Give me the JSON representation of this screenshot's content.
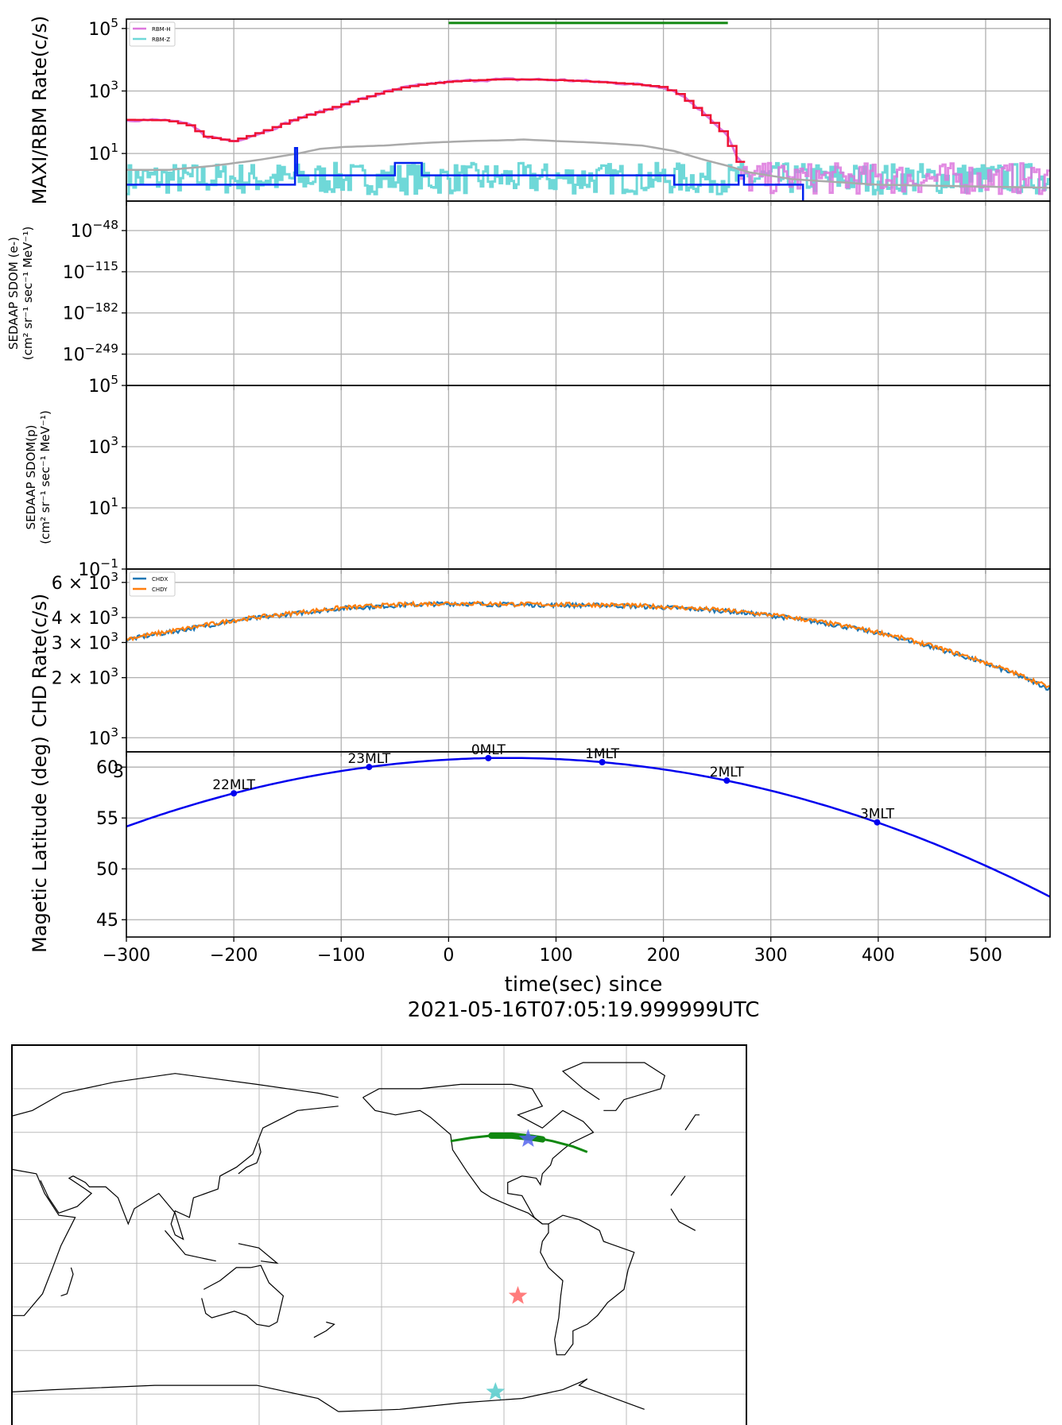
{
  "figure": {
    "xlabel": "time(sec) since",
    "epoch_label": "2021-05-16T07:05:19.999999UTC"
  },
  "chart_data": [
    {
      "type": "line",
      "panel": "maxi-rbm",
      "ylabel": "MAXI/RBM Rate(c/s)",
      "yscale": "log",
      "ylim": [
        0.3,
        200000
      ],
      "xlim": [
        -300,
        560
      ],
      "grid": true,
      "yticks": [
        {
          "v": 10,
          "label": "10",
          "exp": "1"
        },
        {
          "v": 1000,
          "label": "10",
          "exp": "3"
        },
        {
          "v": 100000,
          "label": "10",
          "exp": "5"
        }
      ],
      "legend": {
        "placement": "top-left",
        "entries": [
          {
            "name": "RBM-H",
            "color": "#dd77dd"
          },
          {
            "name": "RBM-Z",
            "color": "#6fd8d8"
          }
        ]
      },
      "green_bar": {
        "x": [
          0,
          260
        ],
        "y": 150000
      },
      "series": [
        {
          "name": "RBM-H",
          "color": "#dd77dd",
          "points": [
            [
              -300,
              120
            ],
            [
              -260,
              115
            ],
            [
              -240,
              80
            ],
            [
              -225,
              35
            ],
            [
              -200,
              25
            ],
            [
              -180,
              40
            ],
            [
              -160,
              70
            ],
            [
              -140,
              130
            ],
            [
              -120,
              210
            ],
            [
              -100,
              340
            ],
            [
              -80,
              560
            ],
            [
              -60,
              900
            ],
            [
              -40,
              1300
            ],
            [
              -20,
              1650
            ],
            [
              0,
              1950
            ],
            [
              25,
              2200
            ],
            [
              50,
              2350
            ],
            [
              80,
              2330
            ],
            [
              110,
              2200
            ],
            [
              140,
              1950
            ],
            [
              170,
              1700
            ],
            [
              200,
              1350
            ],
            [
              215,
              850
            ],
            [
              230,
              330
            ],
            [
              245,
              120
            ],
            [
              260,
              38
            ],
            [
              268,
              8
            ],
            [
              278,
              3
            ],
            [
              300,
              2
            ],
            [
              560,
              1
            ]
          ]
        },
        {
          "name": "RBM-Z",
          "color": "#6fd8d8",
          "noise": {
            "x": [
              -300,
              560
            ],
            "low": 0.5,
            "high": 5
          }
        },
        {
          "name": "trend",
          "color": "#aaaaaa",
          "points": [
            [
              -300,
              3
            ],
            [
              -260,
              3
            ],
            [
              -220,
              4
            ],
            [
              -180,
              6
            ],
            [
              -140,
              10
            ],
            [
              -120,
              14
            ],
            [
              -100,
              16
            ],
            [
              -60,
              18
            ],
            [
              -20,
              22
            ],
            [
              20,
              25
            ],
            [
              60,
              27
            ],
            [
              70,
              28
            ],
            [
              100,
              25
            ],
            [
              140,
              22
            ],
            [
              180,
              18
            ],
            [
              210,
              12
            ],
            [
              240,
              6
            ],
            [
              260,
              4
            ],
            [
              280,
              2.5
            ],
            [
              320,
              1.5
            ],
            [
              400,
              1
            ],
            [
              560,
              0.8
            ]
          ]
        },
        {
          "name": "MAXI",
          "color": "#0022ee",
          "steps": [
            [
              -300,
              1
            ],
            [
              -143,
              1
            ],
            [
              -143,
              15
            ],
            [
              -141,
              15
            ],
            [
              -141,
              2
            ],
            [
              -50,
              2
            ],
            [
              -50,
              5
            ],
            [
              -25,
              5
            ],
            [
              -25,
              2
            ],
            [
              210,
              2
            ],
            [
              210,
              1
            ],
            [
              270,
              1
            ],
            [
              270,
              2
            ],
            [
              275,
              2
            ],
            [
              275,
              1
            ],
            [
              330,
              1
            ],
            [
              330,
              0.3
            ]
          ]
        }
      ]
    },
    {
      "type": "line",
      "panel": "sedaap-e",
      "ylabel": [
        "SEDAAP SDOM (e-)",
        "(cm² sr⁻¹ sec⁻¹ MeV⁻¹)"
      ],
      "yscale": "log",
      "ylim": [
        -300,
        0
      ],
      "grid": true,
      "yticks": [
        {
          "v": -48,
          "label": "10",
          "exp": "−48"
        },
        {
          "v": -115,
          "label": "10",
          "exp": "−115"
        },
        {
          "v": -182,
          "label": "10",
          "exp": "−182"
        },
        {
          "v": -249,
          "label": "10",
          "exp": "−249"
        }
      ],
      "series": []
    },
    {
      "type": "line",
      "panel": "sedaap-p",
      "ylabel": [
        "SEDAAP SDOM(p)",
        "(cm² sr⁻¹ sec⁻¹ MeV⁻¹)"
      ],
      "yscale": "log",
      "ylim": [
        0.1,
        100000
      ],
      "grid": true,
      "yticks": [
        {
          "v": 100000,
          "label": "10",
          "exp": "5"
        },
        {
          "v": 1000,
          "label": "10",
          "exp": "3"
        },
        {
          "v": 10,
          "label": "10",
          "exp": "1"
        },
        {
          "v": 0.1,
          "label": "10",
          "exp": "−1"
        }
      ],
      "series": []
    },
    {
      "type": "line",
      "panel": "chd",
      "ylabel": "CHD Rate(c/s)",
      "yscale": "log",
      "ylim": [
        850,
        7000
      ],
      "grid": true,
      "yticks": [
        {
          "v": 6000,
          "label": "6 × 10",
          "exp": "3"
        },
        {
          "v": 4000,
          "label": "4 × 10",
          "exp": "3"
        },
        {
          "v": 3000,
          "label": "3 × 10",
          "exp": "3"
        },
        {
          "v": 2000,
          "label": "2 × 10",
          "exp": "3"
        },
        {
          "v": 1000,
          "label": "10",
          "exp": "3"
        }
      ],
      "legend": {
        "placement": "top-left",
        "entries": [
          {
            "name": "CHDX",
            "color": "#1f77b4"
          },
          {
            "name": "CHDY",
            "color": "#ff7f0e"
          }
        ]
      },
      "series": [
        {
          "name": "CHDX",
          "color": "#1f77b4",
          "points": [
            [
              -300,
              3100
            ],
            [
              -250,
              3450
            ],
            [
              -200,
              3850
            ],
            [
              -150,
              4150
            ],
            [
              -100,
              4450
            ],
            [
              -50,
              4600
            ],
            [
              0,
              4700
            ],
            [
              50,
              4650
            ],
            [
              100,
              4620
            ],
            [
              150,
              4600
            ],
            [
              200,
              4500
            ],
            [
              250,
              4350
            ],
            [
              300,
              4100
            ],
            [
              350,
              3750
            ],
            [
              400,
              3350
            ],
            [
              450,
              2850
            ],
            [
              500,
              2350
            ],
            [
              560,
              1750
            ]
          ]
        },
        {
          "name": "CHDY",
          "color": "#ff7f0e",
          "points": [
            [
              -300,
              3130
            ],
            [
              -250,
              3480
            ],
            [
              -200,
              3880
            ],
            [
              -150,
              4180
            ],
            [
              -100,
              4480
            ],
            [
              -50,
              4630
            ],
            [
              0,
              4730
            ],
            [
              50,
              4680
            ],
            [
              100,
              4650
            ],
            [
              150,
              4630
            ],
            [
              200,
              4530
            ],
            [
              250,
              4380
            ],
            [
              300,
              4130
            ],
            [
              350,
              3780
            ],
            [
              400,
              3380
            ],
            [
              450,
              2880
            ],
            [
              500,
              2380
            ],
            [
              560,
              1780
            ]
          ]
        }
      ]
    },
    {
      "type": "line",
      "panel": "maglat",
      "ylabel": "Magetic Latitude  (deg)",
      "yscale": "linear",
      "ylim": [
        43.3,
        61.5
      ],
      "grid": true,
      "yticks": [
        {
          "v": 45,
          "label": "45"
        },
        {
          "v": 50,
          "label": "50"
        },
        {
          "v": 55,
          "label": "55"
        },
        {
          "v": 60,
          "label": "60"
        }
      ],
      "xticks": [
        -300,
        -200,
        -100,
        0,
        100,
        200,
        300,
        400,
        500
      ],
      "xticklabels": [
        "−300",
        "−200",
        "−100",
        "0",
        "100",
        "200",
        "300",
        "400",
        "500"
      ],
      "series": [
        {
          "name": "latitude",
          "color": "#0000ee",
          "curve": {
            "peak_x": 55,
            "peak_y": 60.9,
            "k": 5.35e-05
          }
        }
      ],
      "markers": [
        {
          "x": -200,
          "label": "22MLT"
        },
        {
          "x": -74,
          "label": "23MLT"
        },
        {
          "x": 37,
          "label": "0MLT"
        },
        {
          "x": 143,
          "label": "1MLT"
        },
        {
          "x": 259,
          "label": "2MLT"
        },
        {
          "x": 399,
          "label": "3MLT"
        }
      ],
      "stray_label": "3"
    },
    {
      "type": "map",
      "panel": "world-map",
      "grid": true,
      "track_color": "#118811",
      "track": [
        [
          -125,
          46
        ],
        [
          -115,
          47.5
        ],
        [
          -105,
          48.5
        ],
        [
          -95,
          48.5
        ],
        [
          -85,
          47.8
        ],
        [
          -75,
          46
        ],
        [
          -65,
          43.5
        ],
        [
          -58,
          41
        ]
      ],
      "track_thick": [
        [
          -105,
          48.5
        ],
        [
          -95,
          48.5
        ],
        [
          -85,
          47.5
        ],
        [
          -80,
          46.8
        ]
      ],
      "stars": [
        {
          "lon": -87,
          "lat": 47,
          "color": "#5566ee"
        },
        {
          "lon": -92,
          "lat": -25,
          "color": "#ff6666"
        },
        {
          "lon": -103,
          "lat": -69,
          "color": "#55cccc"
        }
      ]
    }
  ]
}
